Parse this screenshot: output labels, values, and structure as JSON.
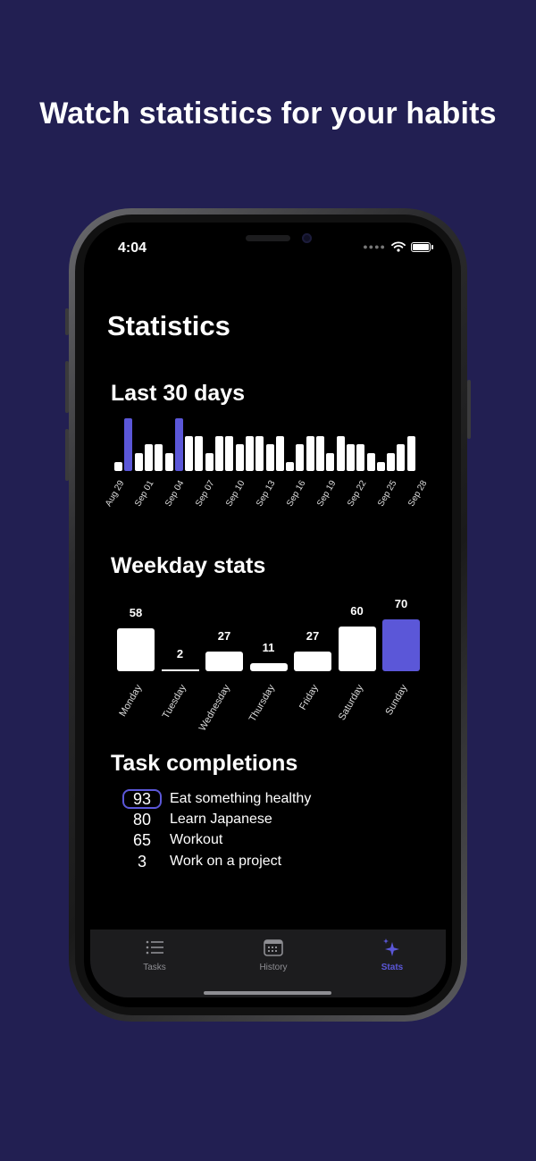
{
  "headline": "Watch statistics for your habits",
  "status_bar": {
    "time": "4:04",
    "icons": [
      "signal-icon",
      "wifi-icon",
      "battery-icon"
    ]
  },
  "page_title": "Statistics",
  "colors": {
    "background": "#221f52",
    "accent": "#5b57d8",
    "bar": "#ffffff"
  },
  "last30": {
    "title": "Last 30 days",
    "chart_data": {
      "type": "bar",
      "values": [
        1,
        6,
        2,
        3,
        3,
        2,
        6,
        4,
        4,
        2,
        4,
        4,
        3,
        4,
        4,
        3,
        4,
        1,
        3,
        4,
        4,
        2,
        4,
        3,
        3,
        2,
        1,
        2,
        3,
        4
      ],
      "highlighted_indices": [
        1,
        6
      ],
      "tick_labels": [
        "Aug 29",
        "Sep 01",
        "Sep 04",
        "Sep 07",
        "Sep 10",
        "Sep 13",
        "Sep 16",
        "Sep 19",
        "Sep 22",
        "Sep 25",
        "Sep 28"
      ],
      "tick_indices": [
        0,
        3,
        6,
        9,
        12,
        15,
        18,
        21,
        24,
        27,
        30
      ]
    }
  },
  "weekday": {
    "title": "Weekday stats",
    "chart_data": {
      "type": "bar",
      "categories": [
        "Monday",
        "Tuesday",
        "Wednesday",
        "Thursday",
        "Friday",
        "Saturday",
        "Sunday"
      ],
      "values": [
        58,
        2,
        27,
        11,
        27,
        60,
        70
      ],
      "highlighted_index": 6
    }
  },
  "completions": {
    "title": "Task completions",
    "items": [
      {
        "count": "93",
        "name": "Eat something healthy",
        "highlighted": true
      },
      {
        "count": "80",
        "name": "Learn Japanese",
        "highlighted": false
      },
      {
        "count": "65",
        "name": "Workout",
        "highlighted": false
      },
      {
        "count": "3",
        "name": "Work on a project",
        "highlighted": false
      }
    ]
  },
  "tabs": [
    {
      "label": "Tasks",
      "icon": "list-icon",
      "active": false
    },
    {
      "label": "History",
      "icon": "calendar-icon",
      "active": false
    },
    {
      "label": "Stats",
      "icon": "sparkles-icon",
      "active": true
    }
  ]
}
